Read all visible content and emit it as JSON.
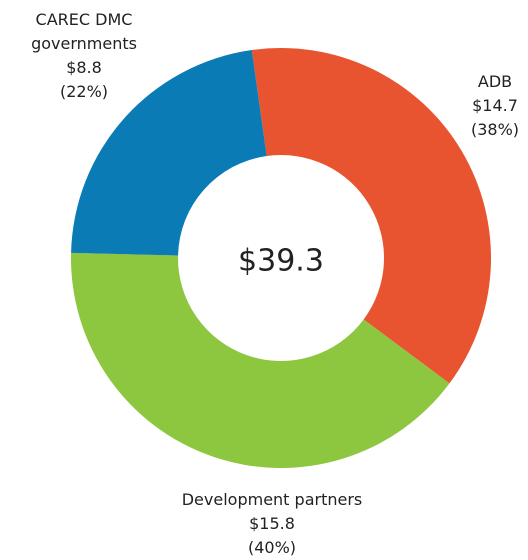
{
  "chart_data": {
    "type": "donut",
    "categories": [
      "ADB",
      "Development partners",
      "CAREC DMC governments"
    ],
    "values": [
      14.7,
      15.8,
      8.8
    ],
    "value_labels": [
      "$14.7",
      "$15.8",
      "$8.8"
    ],
    "percents": [
      38,
      40,
      22
    ],
    "percent_labels": [
      "(38%)",
      "(40%)",
      "(22%)"
    ],
    "colors": [
      "#e8542f",
      "#8dc63f",
      "#0a7bb4"
    ],
    "total": 39.3,
    "total_label": "$39.3"
  }
}
